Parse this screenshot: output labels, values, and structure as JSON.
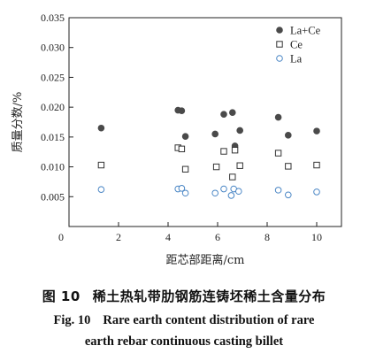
{
  "chart_data": {
    "type": "scatter",
    "xlabel": "距芯部距离/cm",
    "ylabel": "质量分数/%",
    "xlim": [
      0,
      11
    ],
    "ylim": [
      0,
      0.035
    ],
    "x_ticks": [
      0,
      2,
      4,
      6,
      8,
      10
    ],
    "x_tick_labels": [
      "0",
      "2",
      "4",
      "6",
      "8",
      "10"
    ],
    "y_ticks": [
      0.005,
      0.01,
      0.015,
      0.02,
      0.025,
      0.03,
      0.035
    ],
    "y_tick_labels": [
      "0.005",
      "0.010",
      "0.015",
      "0.020",
      "0.025",
      "0.030",
      "0.035"
    ],
    "origin_label": "0",
    "legend_position": "top-right",
    "series": [
      {
        "name": "La+Ce",
        "marker": "filled-circle",
        "color": "#4a4a4a",
        "x": [
          1.3,
          4.4,
          4.55,
          4.7,
          5.9,
          6.25,
          6.6,
          6.7,
          6.9,
          8.45,
          8.85,
          10.0
        ],
        "y": [
          0.0165,
          0.0195,
          0.0194,
          0.0151,
          0.0155,
          0.0188,
          0.0191,
          0.0135,
          0.0161,
          0.0183,
          0.0153,
          0.016
        ]
      },
      {
        "name": "Ce",
        "marker": "open-square",
        "color": "#333333",
        "x": [
          1.3,
          4.4,
          4.55,
          4.7,
          5.95,
          6.25,
          6.6,
          6.7,
          6.9,
          8.45,
          8.85,
          10.0
        ],
        "y": [
          0.0103,
          0.0132,
          0.013,
          0.0096,
          0.01,
          0.0126,
          0.0083,
          0.0128,
          0.0102,
          0.0123,
          0.0101,
          0.0103
        ]
      },
      {
        "name": "La",
        "marker": "open-circle",
        "color": "#4a86c5",
        "x": [
          1.3,
          4.4,
          4.55,
          4.7,
          5.9,
          6.25,
          6.55,
          6.65,
          6.85,
          8.45,
          8.85,
          10.0
        ],
        "y": [
          0.0062,
          0.0063,
          0.0064,
          0.0056,
          0.0056,
          0.0063,
          0.0052,
          0.0063,
          0.0059,
          0.0061,
          0.0053,
          0.0058
        ]
      }
    ]
  },
  "caption": {
    "cn_number": "图 10",
    "cn_title": "稀土热轧带肋钢筋连铸坯稀土含量分布",
    "en_number": "Fig. 10",
    "en_title_line1": "Rare earth content distribution of rare",
    "en_title_line2": "earth rebar continuous casting billet"
  }
}
